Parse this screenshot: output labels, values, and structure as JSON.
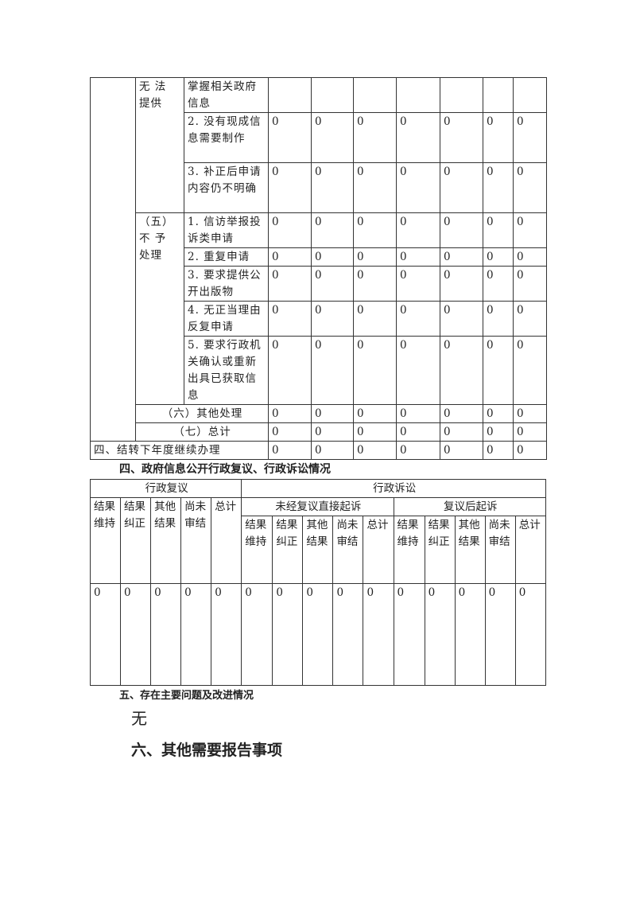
{
  "table1": {
    "unable_group": "无 法 提供",
    "unable_rows": [
      {
        "label": "掌握相关政府信息",
        "values": [
          "",
          "",
          "",
          "",
          "",
          "",
          ""
        ]
      },
      {
        "label": "2. 没有现成信息需要制作",
        "values": [
          "0",
          "0",
          "0",
          "0",
          "0",
          "0",
          "0"
        ]
      },
      {
        "label": "3. 补正后申请内容仍不明确",
        "values": [
          "0",
          "0",
          "0",
          "0",
          "0",
          "0",
          "0"
        ]
      }
    ],
    "no_process_group": "（五）不 予 处理",
    "no_process_rows": [
      {
        "label": "1. 信访举报投诉类申请",
        "values": [
          "0",
          "0",
          "0",
          "0",
          "0",
          "0",
          "0"
        ]
      },
      {
        "label": "2. 重复申请",
        "values": [
          "0",
          "0",
          "0",
          "0",
          "0",
          "0",
          "0"
        ]
      },
      {
        "label": "3. 要求提供公开出版物",
        "values": [
          "0",
          "0",
          "0",
          "0",
          "0",
          "0",
          "0"
        ]
      },
      {
        "label": "4. 无正当理由反复申请",
        "values": [
          "0",
          "0",
          "0",
          "0",
          "0",
          "0",
          "0"
        ]
      },
      {
        "label": "5. 要求行政机关确认或重新出具已获取信息",
        "values": [
          "0",
          "0",
          "0",
          "0",
          "0",
          "0",
          "0"
        ]
      }
    ],
    "other": {
      "label": "（六）其他处理",
      "values": [
        "0",
        "0",
        "0",
        "0",
        "0",
        "0",
        "0"
      ]
    },
    "total": {
      "label": "（七）总计",
      "values": [
        "0",
        "0",
        "0",
        "0",
        "0",
        "0",
        "0"
      ]
    },
    "carry_over": {
      "label": "四、结转下年度继续办理",
      "values": [
        "0",
        "0",
        "0",
        "0",
        "0",
        "0",
        "0"
      ]
    }
  },
  "section4_title": "四、政府信息公开行政复议、行政诉讼情况",
  "table2": {
    "review": "行政复议",
    "litigation": "行政诉讼",
    "direct": "未经复议直接起诉",
    "after_review": "复议后起诉",
    "cols": [
      "结果维持",
      "结果纠正",
      "其他结果",
      "尚未审结",
      "总计"
    ],
    "values": [
      "0",
      "0",
      "0",
      "0",
      "0",
      "0",
      "0",
      "0",
      "0",
      "0",
      "0",
      "0",
      "0",
      "0",
      "0"
    ]
  },
  "section5_title": "五、存在主要问题及改进情况",
  "section5_body": "无",
  "section6_title": "六、其他需要报告事项"
}
